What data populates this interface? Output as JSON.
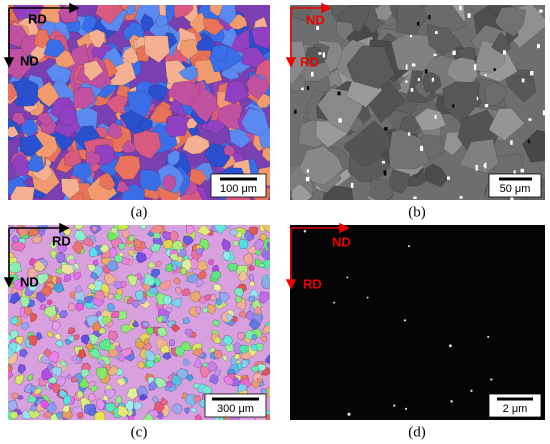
{
  "panels": [
    {
      "label": "(a)",
      "scale_bar": "100 μm",
      "top_axis": "RD",
      "left_axis": "ND"
    },
    {
      "label": "(b)",
      "scale_bar": "50 μm",
      "top_axis": "ND",
      "left_axis": "RD"
    },
    {
      "label": "(c)",
      "scale_bar": "300 μm",
      "top_axis": "RD",
      "left_axis": "ND"
    },
    {
      "label": "(d)",
      "scale_bar": "2 μm",
      "top_axis": "ND",
      "left_axis": "RD"
    }
  ]
}
